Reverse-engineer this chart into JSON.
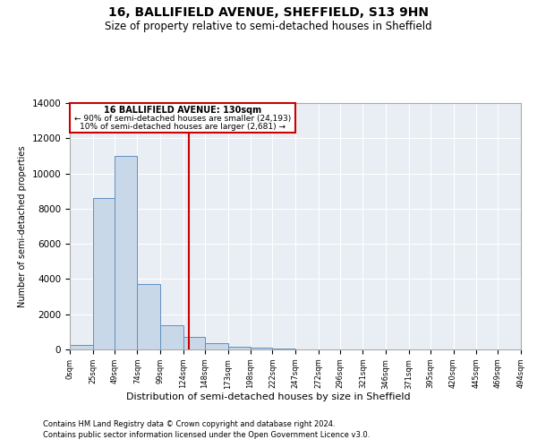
{
  "title1": "16, BALLIFIELD AVENUE, SHEFFIELD, S13 9HN",
  "title2": "Size of property relative to semi-detached houses in Sheffield",
  "xlabel": "Distribution of semi-detached houses by size in Sheffield",
  "ylabel": "Number of semi-detached properties",
  "footnote1": "Contains HM Land Registry data © Crown copyright and database right 2024.",
  "footnote2": "Contains public sector information licensed under the Open Government Licence v3.0.",
  "annotation_title": "16 BALLIFIELD AVENUE: 130sqm",
  "annotation_line1": "← 90% of semi-detached houses are smaller (24,193)",
  "annotation_line2": "10% of semi-detached houses are larger (2,681) →",
  "property_size": 130,
  "bar_edges": [
    0,
    25,
    49,
    74,
    99,
    124,
    148,
    173,
    198,
    222,
    247,
    272,
    296,
    321,
    346,
    371,
    395,
    420,
    445,
    469,
    494
  ],
  "bar_heights": [
    280,
    8600,
    11000,
    3700,
    1400,
    700,
    380,
    160,
    80,
    30,
    10,
    0,
    0,
    0,
    0,
    0,
    0,
    0,
    0,
    0
  ],
  "bar_color": "#c8d8e8",
  "bar_edge_color": "#6090c0",
  "line_color": "#cc0000",
  "annotation_box_color": "#cc0000",
  "background_color": "#e8eef4",
  "ylim": [
    0,
    14000
  ],
  "yticks": [
    0,
    2000,
    4000,
    6000,
    8000,
    10000,
    12000,
    14000
  ],
  "fig_width": 6.0,
  "fig_height": 5.0
}
